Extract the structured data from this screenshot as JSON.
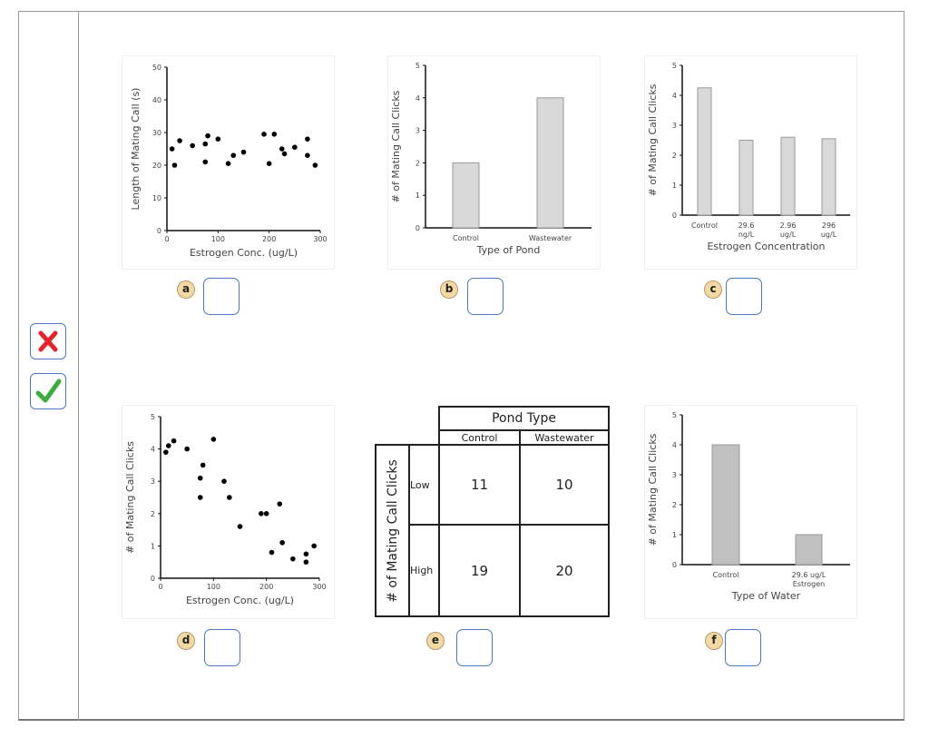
{
  "controls": {
    "wrong_icon": "x-mark-icon",
    "right_icon": "check-mark-icon",
    "wrong_color": "#e8222a",
    "right_color": "#3aae3a"
  },
  "panel_labels": [
    "a",
    "b",
    "c",
    "d",
    "e",
    "f"
  ],
  "chart_data": [
    {
      "id": "a",
      "type": "scatter",
      "xlabel": "Estrogen Conc.  (ug/L)",
      "ylabel": "Length of Mating Call (s)",
      "xlim": [
        0,
        300
      ],
      "ylim": [
        0,
        50
      ],
      "xticks": [
        0,
        100,
        200,
        300
      ],
      "yticks": [
        0,
        10,
        20,
        30,
        40,
        50
      ],
      "grid": false,
      "points": [
        [
          10,
          25
        ],
        [
          15,
          20
        ],
        [
          25,
          27.5
        ],
        [
          50,
          26
        ],
        [
          75,
          26.5
        ],
        [
          75,
          21
        ],
        [
          80,
          29
        ],
        [
          100,
          28
        ],
        [
          120,
          20.5
        ],
        [
          130,
          23
        ],
        [
          150,
          24
        ],
        [
          190,
          29.5
        ],
        [
          200,
          20.5
        ],
        [
          210,
          29.5
        ],
        [
          225,
          25
        ],
        [
          230,
          23.5
        ],
        [
          250,
          25.5
        ],
        [
          275,
          28
        ],
        [
          275,
          23
        ],
        [
          290,
          20
        ]
      ]
    },
    {
      "id": "b",
      "type": "bar",
      "xlabel": "Type of Pond",
      "ylabel": "# of Mating Call Clicks",
      "ylim": [
        0,
        5
      ],
      "yticks": [
        0,
        1,
        2,
        3,
        4,
        5
      ],
      "grid": false,
      "categories": [
        "Control",
        "Wastewater"
      ],
      "values": [
        2,
        4
      ],
      "color": "#d9d9d9"
    },
    {
      "id": "c",
      "type": "bar",
      "xlabel": "Estrogen Concentration",
      "ylabel": "# of Mating Call Clicks",
      "ylim": [
        0,
        5
      ],
      "yticks": [
        0,
        1,
        2,
        3,
        4,
        5
      ],
      "grid": false,
      "categories": [
        "Control",
        "29.6\nng/L",
        "2.96\nug/L",
        "296\nug/L"
      ],
      "values": [
        4.25,
        2.5,
        2.6,
        2.55
      ],
      "color": "#d9d9d9"
    },
    {
      "id": "d",
      "type": "scatter",
      "xlabel": "Estrogen Conc.  (ug/L)",
      "ylabel": "# of Mating Call Clicks",
      "xlim": [
        0,
        300
      ],
      "ylim": [
        0,
        5
      ],
      "xticks": [
        0,
        100,
        200,
        300
      ],
      "yticks": [
        0,
        1,
        2,
        3,
        4,
        5
      ],
      "grid": false,
      "points": [
        [
          10,
          3.9
        ],
        [
          15,
          4.1
        ],
        [
          25,
          4.25
        ],
        [
          50,
          4
        ],
        [
          75,
          3.1
        ],
        [
          75,
          2.5
        ],
        [
          80,
          3.5
        ],
        [
          100,
          4.3
        ],
        [
          120,
          3
        ],
        [
          130,
          2.5
        ],
        [
          150,
          1.6
        ],
        [
          190,
          2
        ],
        [
          200,
          2
        ],
        [
          210,
          0.8
        ],
        [
          225,
          2.3
        ],
        [
          230,
          1.1
        ],
        [
          250,
          0.6
        ],
        [
          275,
          0.75
        ],
        [
          275,
          0.5
        ],
        [
          290,
          1
        ]
      ]
    },
    {
      "id": "e",
      "type": "table",
      "column_group": "Pond Type",
      "columns": [
        "Control",
        "Wastewater"
      ],
      "row_group": "# of Mating Call Clicks",
      "rows": [
        "Low",
        "High"
      ],
      "cells": [
        [
          "11",
          "10"
        ],
        [
          "19",
          "20"
        ]
      ]
    },
    {
      "id": "f",
      "type": "bar",
      "xlabel": "Type of Water",
      "ylabel": "# of Mating Call Clicks",
      "ylim": [
        0,
        5
      ],
      "yticks": [
        0,
        1,
        2,
        3,
        4,
        5
      ],
      "grid": false,
      "categories": [
        "Control",
        "29.6 ug/L\nEstrogen"
      ],
      "values": [
        4,
        1
      ],
      "color": "#c0c0c0"
    }
  ]
}
